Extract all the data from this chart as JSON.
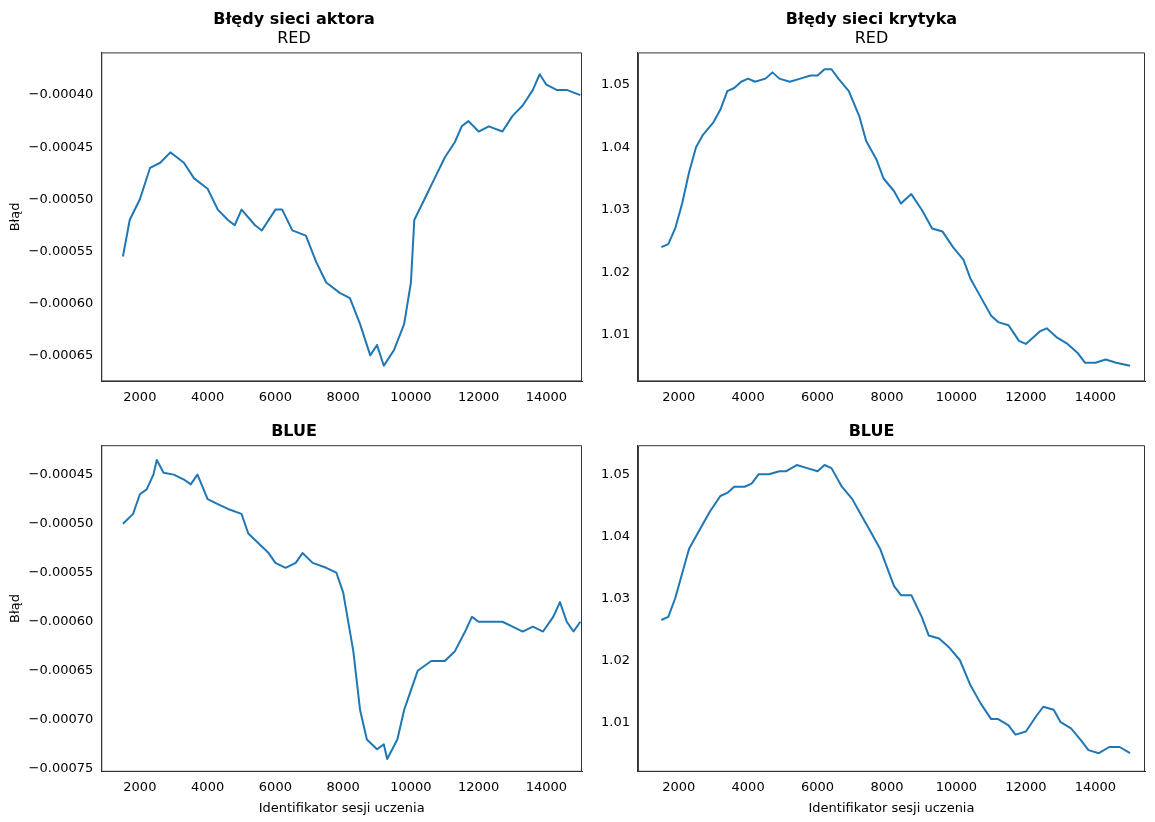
{
  "chart_data": [
    {
      "type": "line",
      "title": "Błędy sieci aktora",
      "subtitle": "RED",
      "ylabel": "Błąd",
      "xlim": [
        860,
        15050
      ],
      "ylim": [
        -0.000675,
        -0.000359
      ],
      "xticks": [
        2000,
        4000,
        6000,
        8000,
        10000,
        12000,
        14000
      ],
      "yticks": [
        {
          "value": -0.00065,
          "label": "−0.00065"
        },
        {
          "value": -0.0006,
          "label": "−0.00060"
        },
        {
          "value": -0.00055,
          "label": "−0.00055"
        },
        {
          "value": -0.0005,
          "label": "−0.00050"
        },
        {
          "value": -0.00045,
          "label": "−0.00045"
        },
        {
          "value": -0.0004,
          "label": "−0.00040"
        }
      ],
      "x": [
        1500,
        1700,
        2000,
        2300,
        2600,
        2900,
        3100,
        3300,
        3600,
        4000,
        4300,
        4600,
        4800,
        5000,
        5400,
        5600,
        6000,
        6200,
        6500,
        6900,
        7200,
        7500,
        7900,
        8200,
        8500,
        8800,
        9000,
        9200,
        9500,
        9800,
        10000,
        10100,
        10400,
        10700,
        11000,
        11300,
        11500,
        11700,
        12000,
        12300,
        12700,
        13000,
        13300,
        13600,
        13800,
        14000,
        14300,
        14600,
        15000
      ],
      "series": [
        {
          "color": "#1f77b4",
          "values": [
            -0.000555,
            -0.00052,
            -0.0005,
            -0.00047,
            -0.000465,
            -0.000455,
            -0.00046,
            -0.000465,
            -0.00048,
            -0.00049,
            -0.00051,
            -0.00052,
            -0.000525,
            -0.00051,
            -0.000525,
            -0.00053,
            -0.00051,
            -0.00051,
            -0.00053,
            -0.000535,
            -0.00056,
            -0.00058,
            -0.00059,
            -0.000595,
            -0.00062,
            -0.00065,
            -0.00064,
            -0.00066,
            -0.000645,
            -0.00062,
            -0.00058,
            -0.00052,
            -0.0005,
            -0.00048,
            -0.00046,
            -0.000445,
            -0.00043,
            -0.000425,
            -0.000435,
            -0.00043,
            -0.000435,
            -0.00042,
            -0.00041,
            -0.000395,
            -0.00038,
            -0.00039,
            -0.000395,
            -0.000395,
            -0.0004
          ]
        }
      ]
    },
    {
      "type": "line",
      "title": "Błędy sieci krytyka",
      "subtitle": "RED",
      "xlim": [
        827,
        15430
      ],
      "ylim": [
        1.0025,
        1.0552
      ],
      "xticks": [
        2000,
        4000,
        6000,
        8000,
        10000,
        12000,
        14000
      ],
      "yticks": [
        1.01,
        1.02,
        1.03,
        1.04,
        1.05
      ],
      "x": [
        1500,
        1700,
        1900,
        2100,
        2300,
        2500,
        2700,
        3000,
        3200,
        3400,
        3600,
        3800,
        4000,
        4200,
        4500,
        4700,
        4900,
        5200,
        5500,
        5800,
        6000,
        6200,
        6400,
        6600,
        6900,
        7200,
        7400,
        7700,
        7900,
        8200,
        8400,
        8700,
        9000,
        9300,
        9600,
        9900,
        10200,
        10400,
        10700,
        11000,
        11200,
        11500,
        11800,
        12000,
        12200,
        12400,
        12600,
        12900,
        13200,
        13500,
        13700,
        14000,
        14300,
        14600,
        15000
      ],
      "series": [
        {
          "color": "#1f77b4",
          "values": [
            1.024,
            1.0245,
            1.027,
            1.031,
            1.036,
            1.04,
            1.042,
            1.044,
            1.046,
            1.049,
            1.0495,
            1.0505,
            1.051,
            1.0505,
            1.051,
            1.052,
            1.051,
            1.0505,
            1.051,
            1.0515,
            1.0515,
            1.0525,
            1.0525,
            1.051,
            1.049,
            1.045,
            1.041,
            1.038,
            1.035,
            1.033,
            1.031,
            1.0325,
            1.03,
            1.027,
            1.0265,
            1.024,
            1.022,
            1.019,
            1.016,
            1.013,
            1.012,
            1.0115,
            1.009,
            1.0085,
            1.0095,
            1.0105,
            1.011,
            1.0095,
            1.0085,
            1.007,
            1.0055,
            1.0055,
            1.006,
            1.0055,
            1.005
          ]
        }
      ]
    },
    {
      "type": "line",
      "title": "BLUE",
      "xlabel": "Identifikator sesji uczenia",
      "ylabel": "Błąd",
      "xlim": [
        860,
        15050
      ],
      "ylim": [
        -0.000753,
        -0.00042
      ],
      "xticks": [
        2000,
        4000,
        6000,
        8000,
        10000,
        12000,
        14000
      ],
      "yticks": [
        {
          "value": -0.00075,
          "label": "−0.00075"
        },
        {
          "value": -0.0007,
          "label": "−0.00070"
        },
        {
          "value": -0.00065,
          "label": "−0.00065"
        },
        {
          "value": -0.0006,
          "label": "−0.00060"
        },
        {
          "value": -0.00055,
          "label": "−0.00055"
        },
        {
          "value": -0.0005,
          "label": "−0.00050"
        },
        {
          "value": -0.00045,
          "label": "−0.00045"
        }
      ],
      "x": [
        1500,
        1800,
        2000,
        2200,
        2400,
        2500,
        2700,
        3000,
        3300,
        3500,
        3700,
        4000,
        4300,
        4600,
        5000,
        5200,
        5500,
        5800,
        6000,
        6300,
        6600,
        6800,
        7100,
        7500,
        7800,
        8000,
        8100,
        8300,
        8500,
        8700,
        9000,
        9200,
        9300,
        9600,
        9800,
        10000,
        10200,
        10600,
        11000,
        11300,
        11600,
        11800,
        12000,
        12300,
        12700,
        13000,
        13300,
        13600,
        13900,
        14200,
        14400,
        14600,
        14800,
        15000
      ],
      "series": [
        {
          "color": "#1f77b4",
          "values": [
            -0.0005,
            -0.00049,
            -0.00047,
            -0.000465,
            -0.00045,
            -0.000435,
            -0.000448,
            -0.00045,
            -0.000455,
            -0.00046,
            -0.00045,
            -0.000475,
            -0.00048,
            -0.000485,
            -0.00049,
            -0.00051,
            -0.00052,
            -0.00053,
            -0.00054,
            -0.000545,
            -0.00054,
            -0.00053,
            -0.00054,
            -0.000545,
            -0.00055,
            -0.00057,
            -0.00059,
            -0.00063,
            -0.00069,
            -0.00072,
            -0.00073,
            -0.000725,
            -0.00074,
            -0.00072,
            -0.00069,
            -0.00067,
            -0.00065,
            -0.00064,
            -0.00064,
            -0.00063,
            -0.00061,
            -0.000595,
            -0.0006,
            -0.0006,
            -0.0006,
            -0.000605,
            -0.00061,
            -0.000605,
            -0.00061,
            -0.000595,
            -0.00058,
            -0.0006,
            -0.00061,
            -0.0006
          ]
        }
      ]
    },
    {
      "type": "line",
      "title": "BLUE",
      "xlabel": "Identifikator sesji uczenia",
      "xlim": [
        827,
        15430
      ],
      "ylim": [
        1.002,
        1.0547
      ],
      "xticks": [
        2000,
        4000,
        6000,
        8000,
        10000,
        12000,
        14000
      ],
      "yticks": [
        1.01,
        1.02,
        1.03,
        1.04,
        1.05
      ],
      "x": [
        1500,
        1700,
        1900,
        2100,
        2300,
        2600,
        2900,
        3200,
        3400,
        3600,
        3900,
        4100,
        4300,
        4600,
        4900,
        5100,
        5400,
        5700,
        6000,
        6200,
        6400,
        6700,
        7000,
        7300,
        7500,
        7800,
        8000,
        8200,
        8400,
        8700,
        9000,
        9200,
        9500,
        9800,
        10100,
        10400,
        10700,
        11000,
        11200,
        11500,
        11700,
        12000,
        12300,
        12500,
        12800,
        13000,
        13300,
        13600,
        13800,
        14100,
        14400,
        14700,
        15000
      ],
      "series": [
        {
          "color": "#1f77b4",
          "values": [
            1.0265,
            1.027,
            1.03,
            1.034,
            1.038,
            1.041,
            1.044,
            1.0465,
            1.047,
            1.048,
            1.048,
            1.0485,
            1.05,
            1.05,
            1.0505,
            1.0505,
            1.0515,
            1.051,
            1.0505,
            1.0515,
            1.051,
            1.048,
            1.046,
            1.043,
            1.041,
            1.038,
            1.035,
            1.032,
            1.0305,
            1.0305,
            1.027,
            1.024,
            1.0235,
            1.022,
            1.02,
            1.016,
            1.013,
            1.0105,
            1.0105,
            1.0095,
            1.008,
            1.0085,
            1.011,
            1.0125,
            1.012,
            1.01,
            1.009,
            1.007,
            1.0055,
            1.005,
            1.006,
            1.006,
            1.005
          ]
        }
      ]
    }
  ]
}
